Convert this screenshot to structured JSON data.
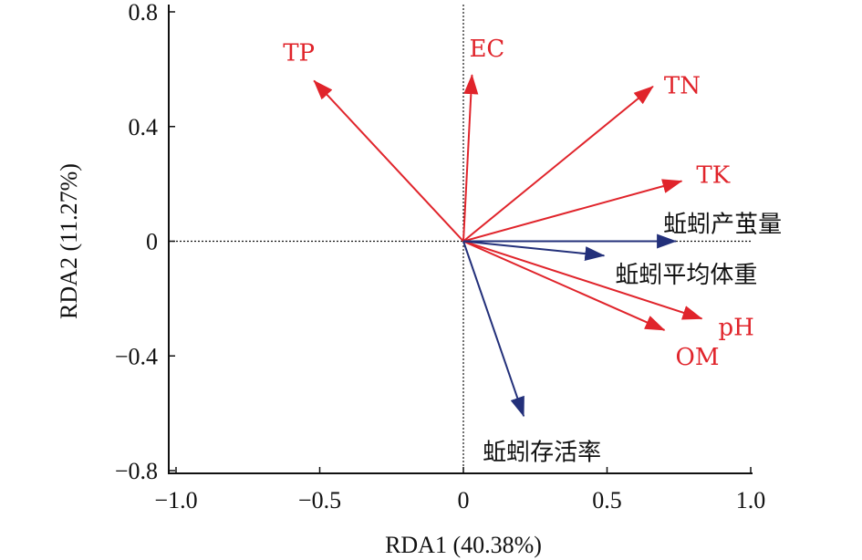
{
  "chart_data": {
    "type": "scatter",
    "subtype": "rda-biplot",
    "title": "",
    "xlabel": "RDA1 (40.38%)",
    "ylabel": "RDA2 (11.27%)",
    "xlim": [
      -1.0,
      1.0
    ],
    "ylim": [
      -0.8,
      0.8
    ],
    "x_ticks": [
      -1.0,
      -0.5,
      0,
      0.5,
      1.0
    ],
    "x_tick_labels": [
      "−1.0",
      "−0.5",
      "0",
      "0.5",
      "1.0"
    ],
    "y_ticks": [
      0.8,
      0.4,
      0,
      -0.4,
      -0.8
    ],
    "y_tick_labels": [
      "0.8",
      "0.4",
      "0",
      "−0.4",
      "−0.8"
    ],
    "zero_lines": "dotted",
    "grid": false,
    "colors": {
      "environment": "#e0242b",
      "response": "#23307a",
      "axis": "#111111"
    },
    "series": [
      {
        "name": "environment",
        "color": "#e0242b",
        "vectors": [
          {
            "label": "TP",
            "x": -0.52,
            "y": 0.56
          },
          {
            "label": "EC",
            "x": 0.03,
            "y": 0.58
          },
          {
            "label": "TN",
            "x": 0.66,
            "y": 0.54
          },
          {
            "label": "TK",
            "x": 0.76,
            "y": 0.21
          },
          {
            "label": "pH",
            "x": 0.83,
            "y": -0.27
          },
          {
            "label": "OM",
            "x": 0.7,
            "y": -0.31
          }
        ]
      },
      {
        "name": "response",
        "color": "#23307a",
        "vectors": [
          {
            "label": "蚯蚓产茧量",
            "x": 0.74,
            "y": 0.0
          },
          {
            "label": "蚯蚓平均体重",
            "x": 0.49,
            "y": -0.05
          },
          {
            "label": "蚯蚓存活率",
            "x": 0.21,
            "y": -0.61
          }
        ]
      }
    ]
  }
}
